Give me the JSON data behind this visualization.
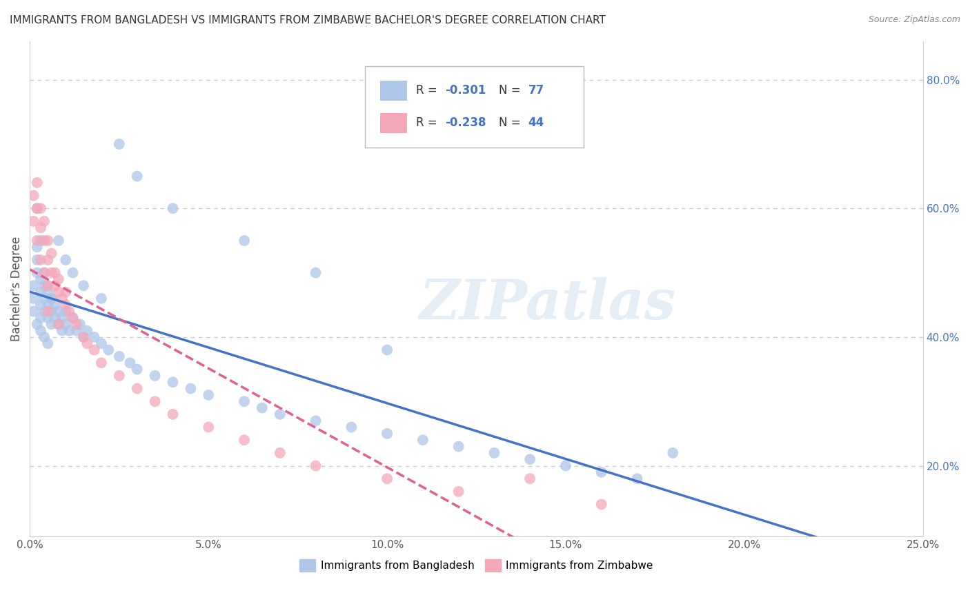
{
  "title": "IMMIGRANTS FROM BANGLADESH VS IMMIGRANTS FROM ZIMBABWE BACHELOR'S DEGREE CORRELATION CHART",
  "source": "Source: ZipAtlas.com",
  "ylabel": "Bachelor's Degree",
  "xlim": [
    0.0,
    0.25
  ],
  "ylim": [
    0.09,
    0.86
  ],
  "xticks": [
    0.0,
    0.05,
    0.1,
    0.15,
    0.2,
    0.25
  ],
  "yticks": [
    0.2,
    0.4,
    0.6,
    0.8
  ],
  "xtick_labels": [
    "0.0%",
    "5.0%",
    "10.0%",
    "15.0%",
    "20.0%",
    "25.0%"
  ],
  "ytick_labels": [
    "20.0%",
    "40.0%",
    "60.0%",
    "80.0%"
  ],
  "bangladesh_color": "#aec6e8",
  "zimbabwe_color": "#f4a7b9",
  "bangladesh_line_color": "#4472c4",
  "zimbabwe_line_color": "#e06090",
  "bangladesh_R": -0.301,
  "bangladesh_N": 77,
  "zimbabwe_R": -0.238,
  "zimbabwe_N": 44,
  "watermark": "ZIPatlas",
  "legend_label_bangladesh": "Immigrants from Bangladesh",
  "legend_label_zimbabwe": "Immigrants from Zimbabwe",
  "background_color": "#ffffff",
  "grid_color": "#cccccc",
  "bangladesh_x": [
    0.001,
    0.001,
    0.001,
    0.002,
    0.002,
    0.002,
    0.002,
    0.003,
    0.003,
    0.003,
    0.003,
    0.003,
    0.004,
    0.004,
    0.004,
    0.004,
    0.005,
    0.005,
    0.005,
    0.005,
    0.006,
    0.006,
    0.006,
    0.007,
    0.007,
    0.008,
    0.008,
    0.009,
    0.009,
    0.01,
    0.01,
    0.011,
    0.012,
    0.013,
    0.014,
    0.015,
    0.016,
    0.018,
    0.02,
    0.022,
    0.025,
    0.028,
    0.03,
    0.035,
    0.04,
    0.045,
    0.05,
    0.06,
    0.065,
    0.07,
    0.08,
    0.09,
    0.1,
    0.11,
    0.12,
    0.13,
    0.14,
    0.15,
    0.16,
    0.17,
    0.002,
    0.003,
    0.004,
    0.005,
    0.006,
    0.008,
    0.01,
    0.012,
    0.015,
    0.02,
    0.025,
    0.03,
    0.04,
    0.06,
    0.08,
    0.1,
    0.18
  ],
  "bangladesh_y": [
    0.44,
    0.46,
    0.48,
    0.5,
    0.52,
    0.54,
    0.42,
    0.43,
    0.45,
    0.47,
    0.49,
    0.41,
    0.44,
    0.46,
    0.48,
    0.4,
    0.43,
    0.45,
    0.47,
    0.39,
    0.42,
    0.44,
    0.46,
    0.43,
    0.45,
    0.42,
    0.44,
    0.41,
    0.43,
    0.42,
    0.44,
    0.41,
    0.43,
    0.41,
    0.42,
    0.4,
    0.41,
    0.4,
    0.39,
    0.38,
    0.37,
    0.36,
    0.35,
    0.34,
    0.33,
    0.32,
    0.31,
    0.3,
    0.29,
    0.28,
    0.27,
    0.26,
    0.25,
    0.24,
    0.23,
    0.22,
    0.21,
    0.2,
    0.19,
    0.18,
    0.6,
    0.55,
    0.5,
    0.48,
    0.46,
    0.55,
    0.52,
    0.5,
    0.48,
    0.46,
    0.7,
    0.65,
    0.6,
    0.55,
    0.5,
    0.38,
    0.22
  ],
  "zimbabwe_x": [
    0.001,
    0.001,
    0.002,
    0.002,
    0.002,
    0.003,
    0.003,
    0.003,
    0.004,
    0.004,
    0.004,
    0.005,
    0.005,
    0.005,
    0.006,
    0.006,
    0.007,
    0.007,
    0.008,
    0.008,
    0.009,
    0.01,
    0.01,
    0.011,
    0.012,
    0.013,
    0.015,
    0.016,
    0.018,
    0.02,
    0.025,
    0.03,
    0.035,
    0.04,
    0.05,
    0.06,
    0.07,
    0.08,
    0.1,
    0.12,
    0.14,
    0.16,
    0.005,
    0.008
  ],
  "zimbabwe_y": [
    0.62,
    0.58,
    0.6,
    0.64,
    0.55,
    0.57,
    0.6,
    0.52,
    0.55,
    0.58,
    0.5,
    0.52,
    0.55,
    0.48,
    0.5,
    0.53,
    0.48,
    0.5,
    0.47,
    0.49,
    0.46,
    0.45,
    0.47,
    0.44,
    0.43,
    0.42,
    0.4,
    0.39,
    0.38,
    0.36,
    0.34,
    0.32,
    0.3,
    0.28,
    0.26,
    0.24,
    0.22,
    0.2,
    0.18,
    0.16,
    0.18,
    0.14,
    0.44,
    0.42
  ]
}
